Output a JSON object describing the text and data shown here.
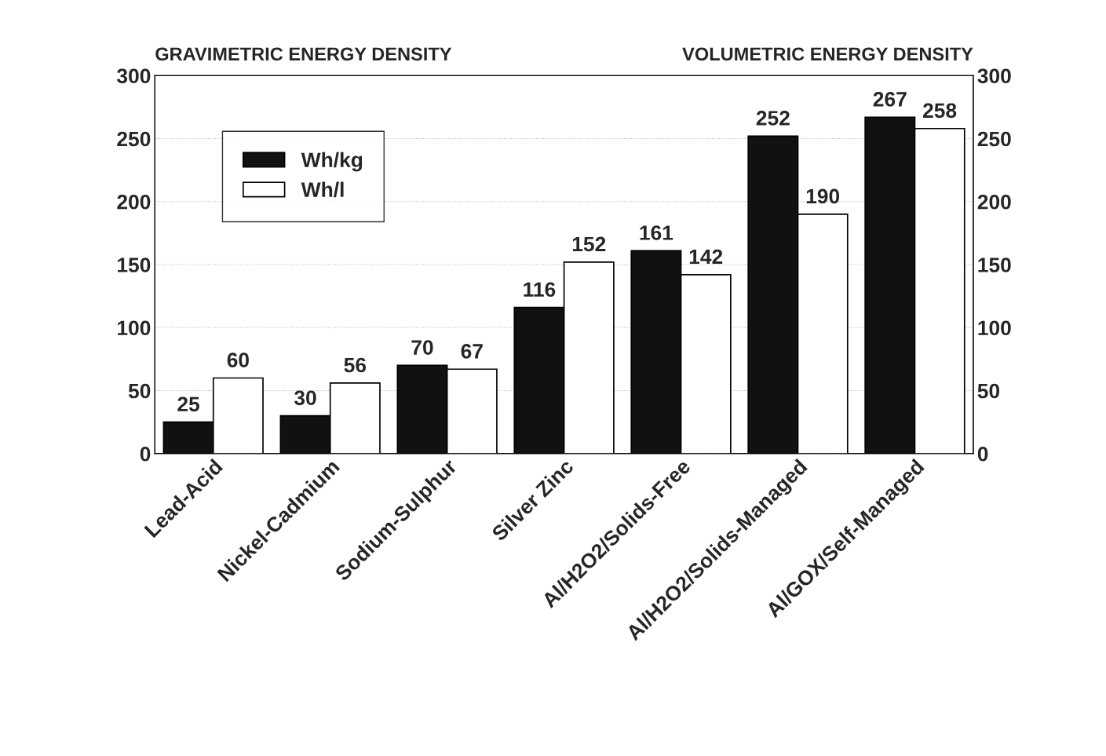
{
  "chart_data": {
    "type": "bar",
    "ylabel": "GRAVIMETRIC ENERGY DENSITY",
    "y2label": "VOLUMETRIC ENERGY DENSITY",
    "categories": [
      "Lead-Acid",
      "Nickel-Cadmium",
      "Sodium-Sulphur",
      "Silver Zinc",
      "Al/H2O2/Solids-Free",
      "Al/H2O2/Solids-Managed",
      "Al/GOX/Self-Managed"
    ],
    "series": [
      {
        "name": "Wh/kg",
        "color": "#111111",
        "values": [
          25,
          30,
          70,
          116,
          161,
          252,
          267
        ]
      },
      {
        "name": "Wh/l",
        "color": "#ffffff",
        "axis": "y2",
        "values": [
          60,
          56,
          67,
          152,
          142,
          190,
          258
        ]
      }
    ],
    "ylim": [
      0,
      300
    ],
    "yticks": [
      0,
      50,
      100,
      150,
      200,
      250,
      300
    ],
    "y2lim": [
      0,
      300
    ],
    "y2ticks": [
      0,
      50,
      100,
      150,
      200,
      250,
      300
    ],
    "grid": "y",
    "legend": "top left",
    "data_labels": true
  }
}
